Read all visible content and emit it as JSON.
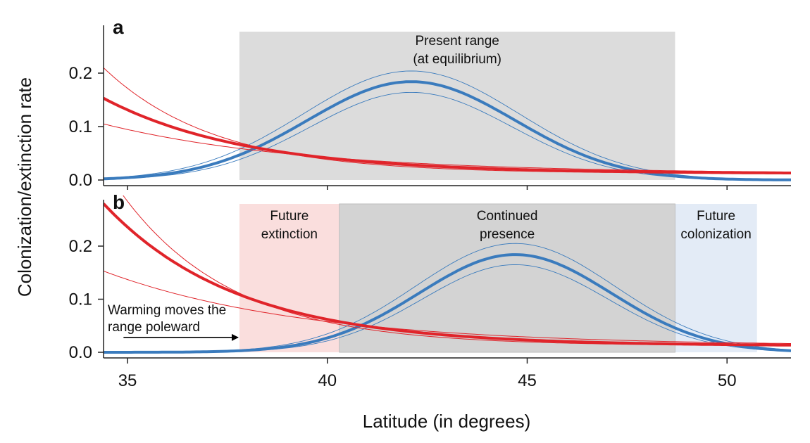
{
  "chart_data": [
    {
      "panel": "a",
      "type": "line",
      "xlim": [
        34.4,
        51.6
      ],
      "ylim": [
        0,
        0.29
      ],
      "xticks": [
        35,
        40,
        45,
        50
      ],
      "yticks": [
        0.0,
        0.1,
        0.2
      ],
      "ytick_labels": [
        "0.0",
        "0.1",
        "0.2"
      ],
      "ylabel": "Colonization/extinction rate",
      "regions": [
        {
          "label_lines": [
            "Present range",
            "(at equilibrium)"
          ],
          "x": [
            37.8,
            48.7
          ],
          "color": "#dcdcdc"
        }
      ],
      "series": [
        {
          "role": "colonization",
          "color": "#3a7bbd",
          "peak_x": 42.1,
          "peak_y": 0.184,
          "sigma": 2.6,
          "floor": 0.0,
          "upper_peak": 0.204,
          "lower_peak": 0.164
        },
        {
          "role": "extinction",
          "color": "#e0242a",
          "y_at_34.4": 0.153,
          "y_at_51.6": 0.012,
          "upper_y_at_34.4": 0.21,
          "lower_y_at_34.4": 0.105
        }
      ]
    },
    {
      "panel": "b",
      "type": "line",
      "xlim": [
        34.4,
        51.6
      ],
      "ylim": [
        0,
        0.29
      ],
      "xticks": [
        35,
        40,
        45,
        50
      ],
      "xtick_labels": [
        "35",
        "40",
        "45",
        "50"
      ],
      "yticks": [
        0.0,
        0.1,
        0.2
      ],
      "ytick_labels": [
        "0.0",
        "0.1",
        "0.2"
      ],
      "xlabel": "Latitude (in degrees)",
      "regions": [
        {
          "label_lines": [
            "Future",
            "extinction"
          ],
          "x": [
            37.8,
            40.3
          ],
          "color": "#fadedd"
        },
        {
          "label_lines": [
            "Continued",
            "presence"
          ],
          "x": [
            40.3,
            48.7
          ],
          "color": "#d3d3d3"
        },
        {
          "label_lines": [
            "Future",
            "colonization"
          ],
          "x": [
            48.7,
            50.75
          ],
          "color": "#e3ebf6"
        }
      ],
      "annotation": {
        "lines": [
          "Warming moves the",
          "range poleward"
        ],
        "arrow_from_x": 34.9,
        "arrow_to_x": 37.8,
        "arrow_y": 0.028
      },
      "series": [
        {
          "role": "colonization",
          "color": "#3a7bbd",
          "peak_x": 44.7,
          "peak_y": 0.184,
          "sigma": 2.4,
          "floor": 0.0,
          "upper_peak": 0.205,
          "lower_peak": 0.165
        },
        {
          "role": "extinction",
          "color": "#e0242a",
          "y_at_34.4": 0.28,
          "y_at_51.6": 0.012,
          "upper_y_at_35.2": 0.29,
          "lower_y_at_34.4": 0.153
        }
      ]
    }
  ]
}
